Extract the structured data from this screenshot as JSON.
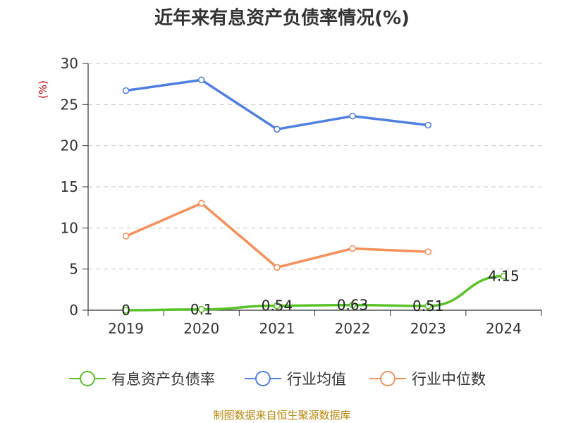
{
  "chart_data": {
    "type": "line",
    "title": "近年来有息资产负债率情况(%)",
    "ylabel": "(%)",
    "categories": [
      "2019",
      "2020",
      "2021",
      "2022",
      "2023",
      "2024"
    ],
    "ylim": [
      0,
      30
    ],
    "yticks": [
      0,
      5,
      10,
      15,
      20,
      25,
      30
    ],
    "grid": true,
    "legend_position": "bottom",
    "series": [
      {
        "name": "有息资产负债率",
        "color": "#5ac229",
        "values": [
          0,
          0.1,
          0.54,
          0.63,
          0.51,
          4.15
        ],
        "labels": [
          "0",
          "0.1",
          "0.54",
          "0.63",
          "0.51",
          "4.15"
        ]
      },
      {
        "name": "行业均值",
        "color": "#4f7fe0",
        "values": [
          26.7,
          28.0,
          22.0,
          23.6,
          22.5,
          null
        ]
      },
      {
        "name": "行业中位数",
        "color": "#f5905a",
        "values": [
          9.0,
          13.0,
          5.2,
          7.5,
          7.1,
          null
        ]
      }
    ],
    "source": "制图数据来自恒生聚源数据库"
  }
}
